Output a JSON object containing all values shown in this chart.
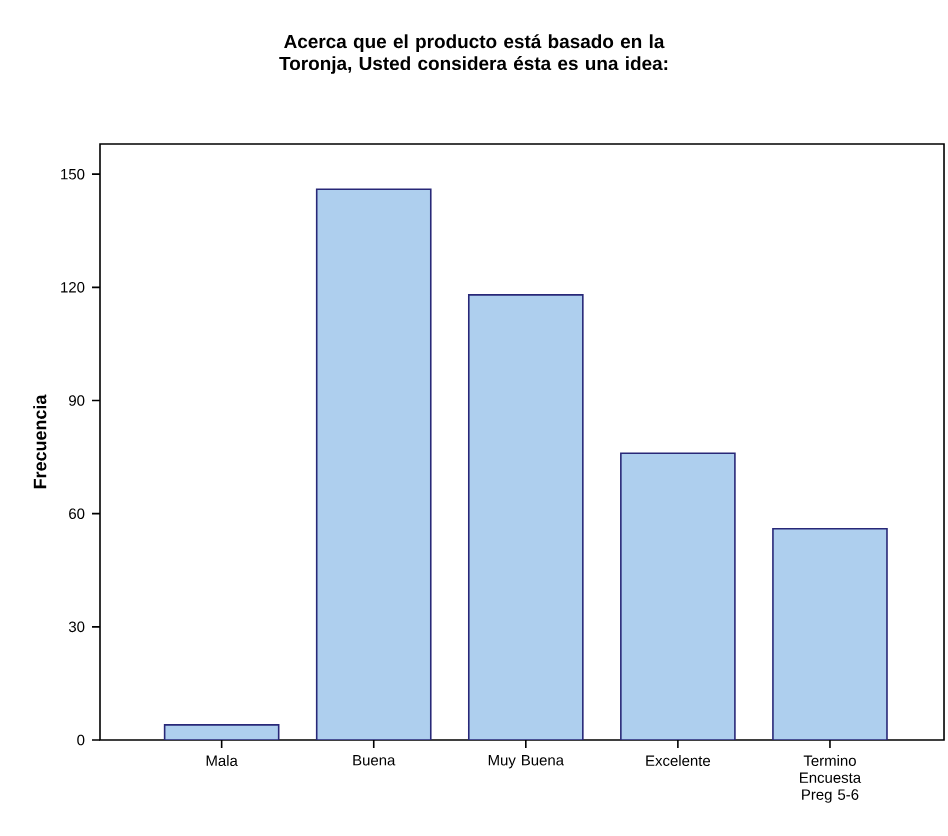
{
  "chart_data": {
    "type": "bar",
    "title": "Acerca que el producto está basado en la Toronja, Usted considera ésta es una idea:",
    "ylabel": "Frecuencia",
    "categories": [
      "Mala",
      "Buena",
      "Muy Buena",
      "Excelente",
      "Termino Encuesta Preg 5-6"
    ],
    "values": [
      4,
      146,
      118,
      76,
      56
    ],
    "color": "#aecfee",
    "ylim": [
      0,
      158
    ],
    "yticks": [
      0,
      30,
      60,
      90,
      120,
      150
    ],
    "grid": false
  }
}
